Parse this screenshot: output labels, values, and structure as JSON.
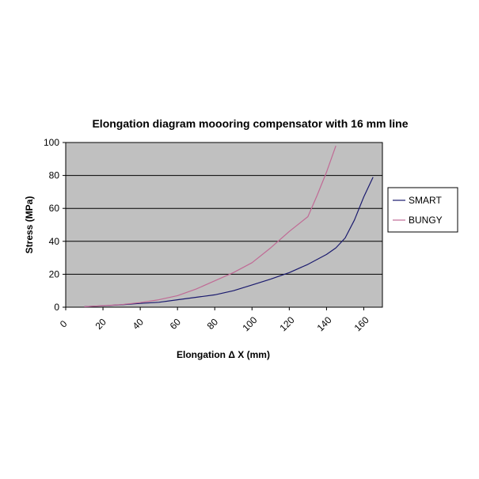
{
  "chart_data": {
    "type": "line",
    "title": "Elongation diagram moooring compensator with 16 mm line",
    "xlabel": "Elongation Δ X (mm)",
    "ylabel": "Stress (MPa)",
    "xlim": [
      0,
      170
    ],
    "ylim": [
      0,
      100
    ],
    "xticks": [
      "0",
      "20",
      "40",
      "60",
      "80",
      "100",
      "120",
      "140",
      "160"
    ],
    "yticks": [
      "0",
      "20",
      "40",
      "60",
      "80",
      "100"
    ],
    "grid": "horizontal",
    "legend_position": "right",
    "background_color": "#c0c0c0",
    "series": [
      {
        "name": "SMART",
        "color": "#1a1a6e",
        "x": [
          10,
          20,
          30,
          40,
          50,
          60,
          70,
          80,
          90,
          100,
          110,
          120,
          130,
          140,
          145,
          150,
          155,
          160,
          165
        ],
        "y": [
          0.3,
          0.8,
          1.5,
          2.3,
          3.0,
          4.5,
          6.0,
          7.5,
          10,
          13.5,
          17,
          21,
          26,
          32,
          36,
          42,
          53,
          67,
          79
        ]
      },
      {
        "name": "BUNGY",
        "color": "#c06a95",
        "x": [
          10,
          20,
          30,
          40,
          50,
          60,
          70,
          80,
          90,
          100,
          110,
          120,
          130,
          135,
          140,
          145
        ],
        "y": [
          0.3,
          0.9,
          1.6,
          2.8,
          4.5,
          7.0,
          11,
          16,
          21,
          27,
          36,
          46,
          55,
          68,
          82,
          98
        ]
      }
    ]
  }
}
